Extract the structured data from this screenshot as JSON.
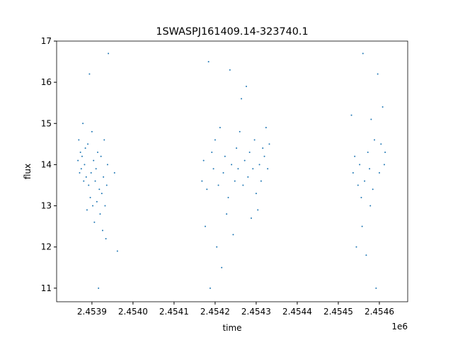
{
  "chart_data": {
    "type": "scatter",
    "title": "1SWASPJ161409.14-323740.1",
    "x_label": "time",
    "y_label": "flux",
    "x_offset": "1e6",
    "color": "#1f77b4",
    "xlim": [
      2453814,
      2454669
    ],
    "ylim": [
      10.67,
      17.0
    ],
    "xticks": [
      {
        "value": 2453900,
        "label": "2.4539"
      },
      {
        "value": 2454000,
        "label": "2.4540"
      },
      {
        "value": 2454100,
        "label": "2.4541"
      },
      {
        "value": 2454200,
        "label": "2.4542"
      },
      {
        "value": 2454300,
        "label": "2.4543"
      },
      {
        "value": 2454400,
        "label": "2.4544"
      },
      {
        "value": 2454500,
        "label": "2.4545"
      },
      {
        "value": 2454600,
        "label": "2.4546"
      }
    ],
    "yticks": [
      11,
      12,
      13,
      14,
      15,
      16,
      17
    ],
    "x": [
      2453866,
      2453868,
      2453870,
      2453872,
      2453874,
      2453876,
      2453878,
      2453880,
      2453882,
      2453884,
      2453886,
      2453888,
      2453890,
      2453892,
      2453894,
      2453896,
      2453898,
      2453900,
      2453902,
      2453904,
      2453906,
      2453908,
      2453910,
      2453912,
      2453914,
      2453916,
      2453918,
      2453920,
      2453922,
      2453924,
      2453926,
      2453928,
      2453930,
      2453932,
      2453934,
      2453936,
      2453938,
      2453940,
      2453955,
      2453962,
      2454168,
      2454172,
      2454176,
      2454180,
      2454184,
      2454188,
      2454192,
      2454196,
      2454200,
      2454204,
      2454208,
      2454212,
      2454216,
      2454220,
      2454224,
      2454228,
      2454232,
      2454236,
      2454240,
      2454244,
      2454248,
      2454252,
      2454256,
      2454260,
      2454264,
      2454268,
      2454272,
      2454276,
      2454280,
      2454284,
      2454288,
      2454292,
      2454296,
      2454300,
      2454304,
      2454308,
      2454312,
      2454316,
      2454320,
      2454324,
      2454328,
      2454332,
      2454532,
      2454536,
      2454540,
      2454544,
      2454548,
      2454552,
      2454556,
      2454560,
      2454564,
      2454568,
      2454572,
      2454576,
      2454580,
      2454584,
      2454588,
      2454592,
      2454596,
      2454600,
      2454604,
      2454608,
      2454612,
      2454614,
      2454558,
      2454578
    ],
    "values": [
      14.1,
      14.6,
      13.8,
      14.3,
      13.9,
      14.2,
      15.0,
      13.6,
      14.0,
      14.4,
      13.7,
      12.9,
      14.5,
      13.5,
      16.2,
      13.2,
      13.8,
      14.8,
      13.0,
      14.1,
      12.6,
      13.6,
      13.9,
      13.1,
      14.3,
      11.0,
      13.4,
      12.8,
      14.2,
      13.3,
      12.4,
      13.7,
      14.6,
      13.0,
      12.2,
      13.5,
      14.0,
      16.7,
      13.8,
      11.9,
      13.6,
      14.1,
      12.5,
      13.4,
      16.5,
      11.0,
      14.3,
      13.9,
      14.6,
      12.0,
      13.5,
      14.9,
      11.5,
      13.8,
      14.2,
      12.8,
      13.2,
      16.3,
      14.0,
      12.3,
      13.6,
      14.4,
      13.9,
      14.8,
      15.6,
      13.5,
      14.1,
      15.9,
      13.7,
      14.3,
      12.7,
      13.9,
      14.6,
      13.3,
      12.9,
      14.0,
      13.6,
      14.4,
      14.2,
      14.9,
      13.9,
      14.5,
      15.2,
      13.8,
      14.2,
      12.0,
      13.5,
      14.0,
      13.2,
      16.7,
      13.6,
      11.8,
      14.3,
      13.9,
      15.1,
      13.4,
      14.6,
      11.0,
      16.2,
      13.8,
      14.5,
      15.4,
      14.0,
      14.3,
      12.5,
      13.0
    ]
  }
}
